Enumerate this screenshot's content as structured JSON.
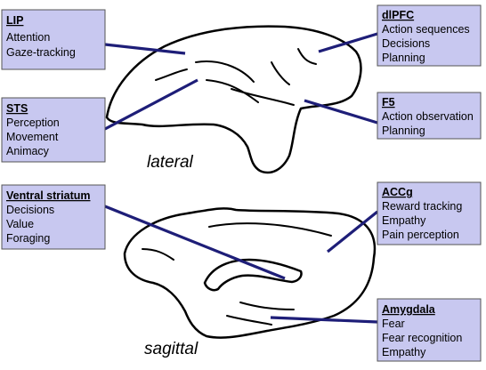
{
  "views": {
    "lateral": "lateral",
    "sagittal": "sagittal"
  },
  "regions": [
    {
      "id": "lip",
      "title": "LIP",
      "items": [
        "Attention",
        "Gaze-tracking"
      ]
    },
    {
      "id": "sts",
      "title": "STS",
      "items": [
        "Perception",
        "Movement",
        "Animacy"
      ]
    },
    {
      "id": "dlpfc",
      "title": "dlPFC",
      "items": [
        "Action sequences",
        "Decisions",
        "Planning"
      ]
    },
    {
      "id": "f5",
      "title": "F5",
      "items": [
        "Action observation",
        "Planning"
      ]
    },
    {
      "id": "ventral-striatum",
      "title": "Ventral striatum",
      "items": [
        "Decisions",
        "Value",
        "Foraging"
      ]
    },
    {
      "id": "accg",
      "title": "ACCg",
      "items": [
        "Reward tracking",
        "Empathy",
        "Pain perception"
      ]
    },
    {
      "id": "amygdala",
      "title": "Amygdala",
      "items": [
        "Fear",
        "Fear recognition",
        "Empathy"
      ]
    }
  ],
  "colors": {
    "box_fill": "#c8c8f0",
    "connector": "#1e1e78",
    "outline": "#000000"
  }
}
